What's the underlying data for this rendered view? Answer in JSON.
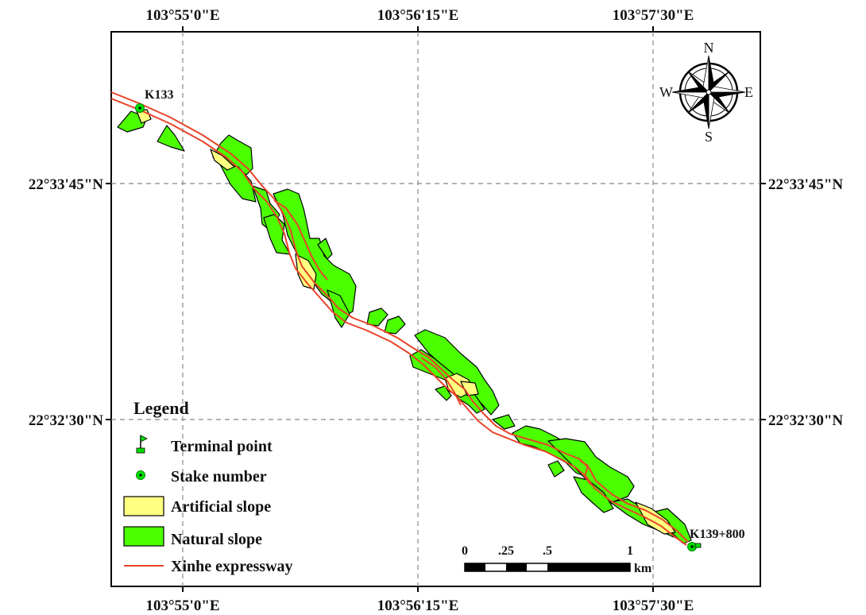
{
  "map": {
    "x_ticks": [
      "103°55'0\"E",
      "103°56'15\"E",
      "103°57'30\"E"
    ],
    "y_ticks": [
      "22°33'45\"N",
      "22°32'30\"N"
    ],
    "stakes": {
      "start": "K133",
      "end": "K139+800"
    },
    "compass": {
      "n": "N",
      "s": "S",
      "e": "E",
      "w": "W"
    },
    "colors": {
      "natural_slope": "#4cff00",
      "artificial_slope": "#ffff80",
      "expressway": "#e8432a",
      "stake": "#00e000"
    }
  },
  "legend": {
    "title": "Legend",
    "items": [
      {
        "label": "Terminal point",
        "symbol": "flag-icon"
      },
      {
        "label": "Stake number",
        "symbol": "stake-dot-icon"
      },
      {
        "label": "Artificial slope",
        "symbol": "yellow-box"
      },
      {
        "label": "Natural slope",
        "symbol": "green-box"
      },
      {
        "label": "Xinhe expressway",
        "symbol": "red-line"
      }
    ]
  },
  "scale_bar": {
    "labels": [
      "0",
      ".25",
      ".5",
      "1"
    ],
    "unit": "km"
  }
}
